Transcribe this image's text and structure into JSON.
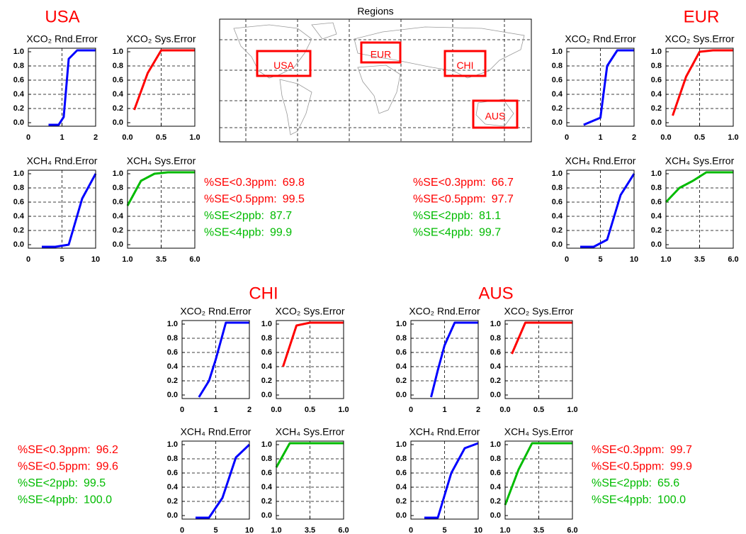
{
  "map": {
    "title": "Regions",
    "boxes": [
      {
        "label": "USA"
      },
      {
        "label": "EUR"
      },
      {
        "label": "CHI"
      },
      {
        "label": "AUS"
      }
    ]
  },
  "regions": [
    {
      "name": "USA",
      "stats": [
        {
          "label": "%SE<0.3ppm:",
          "value": "69.8",
          "color": "#ff0000"
        },
        {
          "label": "%SE<0.5ppm:",
          "value": "99.5",
          "color": "#ff0000"
        },
        {
          "label": "%SE<2ppb:",
          "value": "87.7",
          "color": "#00bb00"
        },
        {
          "label": "%SE<4ppb:",
          "value": "99.9",
          "color": "#00bb00"
        }
      ]
    },
    {
      "name": "EUR",
      "stats": [
        {
          "label": "%SE<0.3ppm:",
          "value": "66.7",
          "color": "#ff0000"
        },
        {
          "label": "%SE<0.5ppm:",
          "value": "97.7",
          "color": "#ff0000"
        },
        {
          "label": "%SE<2ppb:",
          "value": "81.1",
          "color": "#00bb00"
        },
        {
          "label": "%SE<4ppb:",
          "value": "99.7",
          "color": "#00bb00"
        }
      ]
    },
    {
      "name": "CHI",
      "stats": [
        {
          "label": "%SE<0.3ppm:",
          "value": "96.2",
          "color": "#ff0000"
        },
        {
          "label": "%SE<0.5ppm:",
          "value": "99.6",
          "color": "#ff0000"
        },
        {
          "label": "%SE<2ppb:",
          "value": "99.5",
          "color": "#00bb00"
        },
        {
          "label": "%SE<4ppb:",
          "value": "100.0",
          "color": "#00bb00"
        }
      ]
    },
    {
      "name": "AUS",
      "stats": [
        {
          "label": "%SE<0.3ppm:",
          "value": "99.7",
          "color": "#ff0000"
        },
        {
          "label": "%SE<0.5ppm:",
          "value": "99.9",
          "color": "#ff0000"
        },
        {
          "label": "%SE<2ppb:",
          "value": "65.6",
          "color": "#00bb00"
        },
        {
          "label": "%SE<4ppb:",
          "value": "100.0",
          "color": "#00bb00"
        }
      ]
    }
  ],
  "chart_data": [
    {
      "type": "line",
      "title": "XCO₂ Rnd.Error",
      "x": [
        0.6,
        0.9,
        1.05,
        1.2,
        1.45,
        2.0
      ],
      "series": [
        {
          "color": "#0000ff",
          "values": [
            -0.03,
            -0.03,
            0.08,
            0.9,
            1.02,
            1.02
          ]
        }
      ],
      "xlim": [
        0,
        2
      ],
      "ylim": [
        -0.05,
        1.05
      ],
      "xticks": [
        0,
        1,
        2
      ],
      "yticks": [
        {
          "value": 0,
          "label": "0.0"
        },
        0.2,
        0.4,
        0.6,
        0.8,
        {
          "value": 1,
          "label": "1.0"
        }
      ],
      "grid": true
    },
    {
      "type": "line",
      "title": "XCO₂ Sys.Error",
      "x": [
        0.1,
        0.3,
        0.5,
        1.0
      ],
      "series": [
        {
          "color": "#ff0000",
          "values": [
            0.18,
            0.7,
            1.02,
            1.02
          ]
        }
      ],
      "xlim": [
        0,
        1
      ],
      "ylim": [
        -0.05,
        1.05
      ],
      "xticks": [
        {
          "value": 0,
          "label": "0.0"
        },
        0.5,
        {
          "value": 1,
          "label": "1.0"
        }
      ],
      "yticks": [
        {
          "value": 0,
          "label": "0.0"
        },
        0.2,
        0.4,
        0.6,
        0.8,
        {
          "value": 1,
          "label": "1.0"
        }
      ],
      "grid": true
    },
    {
      "type": "line",
      "title": "XCH₄ Rnd.Error",
      "x": [
        2,
        4,
        6,
        8,
        10
      ],
      "series": [
        {
          "color": "#0000ff",
          "values": [
            -0.03,
            -0.03,
            0.0,
            0.65,
            1.0
          ]
        }
      ],
      "xlim": [
        0,
        10
      ],
      "ylim": [
        -0.05,
        1.05
      ],
      "xticks": [
        0,
        5,
        10
      ],
      "yticks": [
        {
          "value": 0,
          "label": "0.0"
        },
        0.2,
        0.4,
        0.6,
        0.8,
        {
          "value": 1,
          "label": "1.0"
        }
      ],
      "grid": true
    },
    {
      "type": "line",
      "title": "XCH₄ Sys.Error",
      "x": [
        1,
        2,
        3,
        4,
        6
      ],
      "series": [
        {
          "color": "#00bb00",
          "values": [
            0.55,
            0.9,
            1.0,
            1.02,
            1.02
          ]
        }
      ],
      "xlim": [
        1,
        6
      ],
      "ylim": [
        -0.05,
        1.05
      ],
      "xticks": [
        {
          "value": 1,
          "label": "1.0"
        },
        3.5,
        {
          "value": 6,
          "label": "6.0"
        }
      ],
      "yticks": [
        {
          "value": 0,
          "label": "0.0"
        },
        0.2,
        0.4,
        0.6,
        0.8,
        {
          "value": 1,
          "label": "1.0"
        }
      ],
      "grid": true
    },
    {
      "type": "line",
      "title": "XCO₂ Rnd.Error",
      "x": [
        0.5,
        1.0,
        1.2,
        1.5,
        2.0
      ],
      "series": [
        {
          "color": "#0000ff",
          "values": [
            -0.03,
            0.07,
            0.8,
            1.02,
            1.02
          ]
        }
      ],
      "xlim": [
        0,
        2
      ],
      "ylim": [
        -0.05,
        1.05
      ],
      "xticks": [
        0,
        1,
        2
      ],
      "yticks": [
        {
          "value": 0,
          "label": "0.0"
        },
        0.2,
        0.4,
        0.6,
        0.8,
        {
          "value": 1,
          "label": "1.0"
        }
      ],
      "grid": true
    },
    {
      "type": "line",
      "title": "XCO₂ Sys.Error",
      "x": [
        0.1,
        0.3,
        0.5,
        0.7,
        1.0
      ],
      "series": [
        {
          "color": "#ff0000",
          "values": [
            0.1,
            0.65,
            1.0,
            1.02,
            1.02
          ]
        }
      ],
      "xlim": [
        0,
        1
      ],
      "ylim": [
        -0.05,
        1.05
      ],
      "xticks": [
        {
          "value": 0,
          "label": "0.0"
        },
        0.5,
        {
          "value": 1,
          "label": "1.0"
        }
      ],
      "yticks": [
        {
          "value": 0,
          "label": "0.0"
        },
        0.2,
        0.4,
        0.6,
        0.8,
        {
          "value": 1,
          "label": "1.0"
        }
      ],
      "grid": true
    },
    {
      "type": "line",
      "title": "XCH₄ Rnd.Error",
      "x": [
        2,
        4,
        6,
        8,
        10
      ],
      "series": [
        {
          "color": "#0000ff",
          "values": [
            -0.03,
            -0.03,
            0.07,
            0.7,
            1.0
          ]
        }
      ],
      "xlim": [
        0,
        10
      ],
      "ylim": [
        -0.05,
        1.05
      ],
      "xticks": [
        0,
        5,
        10
      ],
      "yticks": [
        {
          "value": 0,
          "label": "0.0"
        },
        0.2,
        0.4,
        0.6,
        0.8,
        {
          "value": 1,
          "label": "1.0"
        }
      ],
      "grid": true
    },
    {
      "type": "line",
      "title": "XCH₄ Sys.Error",
      "x": [
        1,
        2,
        3,
        4,
        6
      ],
      "series": [
        {
          "color": "#00bb00",
          "values": [
            0.6,
            0.8,
            0.9,
            1.02,
            1.02
          ]
        }
      ],
      "xlim": [
        1,
        6
      ],
      "ylim": [
        -0.05,
        1.05
      ],
      "xticks": [
        {
          "value": 1,
          "label": "1.0"
        },
        3.5,
        {
          "value": 6,
          "label": "6.0"
        }
      ],
      "yticks": [
        {
          "value": 0,
          "label": "0.0"
        },
        0.2,
        0.4,
        0.6,
        0.8,
        {
          "value": 1,
          "label": "1.0"
        }
      ],
      "grid": true
    },
    {
      "type": "line",
      "title": "XCO₂ Rnd.Error",
      "x": [
        0.5,
        0.8,
        1.0,
        1.3,
        2.0
      ],
      "series": [
        {
          "color": "#0000ff",
          "values": [
            -0.03,
            0.2,
            0.5,
            1.02,
            1.02
          ]
        }
      ],
      "xlim": [
        0,
        2
      ],
      "ylim": [
        -0.05,
        1.05
      ],
      "xticks": [
        0,
        1,
        2
      ],
      "yticks": [
        {
          "value": 0,
          "label": "0.0"
        },
        0.2,
        0.4,
        0.6,
        0.8,
        {
          "value": 1,
          "label": "1.0"
        }
      ],
      "grid": true
    },
    {
      "type": "line",
      "title": "XCO₂ Sys.Error",
      "x": [
        0.1,
        0.3,
        0.5,
        1.0
      ],
      "series": [
        {
          "color": "#ff0000",
          "values": [
            0.4,
            0.98,
            1.02,
            1.02
          ]
        }
      ],
      "xlim": [
        0,
        1
      ],
      "ylim": [
        -0.05,
        1.05
      ],
      "xticks": [
        {
          "value": 0,
          "label": "0.0"
        },
        0.5,
        {
          "value": 1,
          "label": "1.0"
        }
      ],
      "yticks": [
        {
          "value": 0,
          "label": "0.0"
        },
        0.2,
        0.4,
        0.6,
        0.8,
        {
          "value": 1,
          "label": "1.0"
        }
      ],
      "grid": true
    },
    {
      "type": "line",
      "title": "XCH₄ Rnd.Error",
      "x": [
        2,
        4,
        6,
        8,
        10
      ],
      "series": [
        {
          "color": "#0000ff",
          "values": [
            -0.03,
            -0.03,
            0.25,
            0.82,
            1.0
          ]
        }
      ],
      "xlim": [
        0,
        10
      ],
      "ylim": [
        -0.05,
        1.05
      ],
      "xticks": [
        0,
        5,
        10
      ],
      "yticks": [
        {
          "value": 0,
          "label": "0.0"
        },
        0.2,
        0.4,
        0.6,
        0.8,
        {
          "value": 1,
          "label": "1.0"
        }
      ],
      "grid": true
    },
    {
      "type": "line",
      "title": "XCH₄ Sys.Error",
      "x": [
        1,
        2,
        6
      ],
      "series": [
        {
          "color": "#00bb00",
          "values": [
            0.68,
            1.02,
            1.02
          ]
        }
      ],
      "xlim": [
        1,
        6
      ],
      "ylim": [
        -0.05,
        1.05
      ],
      "xticks": [
        {
          "value": 1,
          "label": "1.0"
        },
        3.5,
        {
          "value": 6,
          "label": "6.0"
        }
      ],
      "yticks": [
        {
          "value": 0,
          "label": "0.0"
        },
        0.2,
        0.4,
        0.6,
        0.8,
        {
          "value": 1,
          "label": "1.0"
        }
      ],
      "grid": true
    },
    {
      "type": "line",
      "title": "XCO₂ Rnd.Error",
      "x": [
        0.6,
        0.8,
        1.0,
        1.3,
        2.0
      ],
      "series": [
        {
          "color": "#0000ff",
          "values": [
            -0.03,
            0.35,
            0.7,
            1.02,
            1.02
          ]
        }
      ],
      "xlim": [
        0,
        2
      ],
      "ylim": [
        -0.05,
        1.05
      ],
      "xticks": [
        0,
        1,
        2
      ],
      "yticks": [
        {
          "value": 0,
          "label": "0.0"
        },
        0.2,
        0.4,
        0.6,
        0.8,
        {
          "value": 1,
          "label": "1.0"
        }
      ],
      "grid": true
    },
    {
      "type": "line",
      "title": "XCO₂ Sys.Error",
      "x": [
        0.1,
        0.3,
        1.0
      ],
      "series": [
        {
          "color": "#ff0000",
          "values": [
            0.58,
            1.02,
            1.02
          ]
        }
      ],
      "xlim": [
        0,
        1
      ],
      "ylim": [
        -0.05,
        1.05
      ],
      "xticks": [
        {
          "value": 0,
          "label": "0.0"
        },
        0.5,
        {
          "value": 1,
          "label": "1.0"
        }
      ],
      "yticks": [
        {
          "value": 0,
          "label": "0.0"
        },
        0.2,
        0.4,
        0.6,
        0.8,
        {
          "value": 1,
          "label": "1.0"
        }
      ],
      "grid": true
    },
    {
      "type": "line",
      "title": "XCH₄ Rnd.Error",
      "x": [
        2,
        4,
        6,
        8,
        10
      ],
      "series": [
        {
          "color": "#0000ff",
          "values": [
            -0.03,
            -0.03,
            0.6,
            0.95,
            1.02
          ]
        }
      ],
      "xlim": [
        0,
        10
      ],
      "ylim": [
        -0.05,
        1.05
      ],
      "xticks": [
        0,
        5,
        10
      ],
      "yticks": [
        {
          "value": 0,
          "label": "0.0"
        },
        0.2,
        0.4,
        0.6,
        0.8,
        {
          "value": 1,
          "label": "1.0"
        }
      ],
      "grid": true
    },
    {
      "type": "line",
      "title": "XCH₄ Sys.Error",
      "x": [
        1,
        2,
        3,
        6
      ],
      "series": [
        {
          "color": "#00bb00",
          "values": [
            0.15,
            0.65,
            1.02,
            1.02
          ]
        }
      ],
      "xlim": [
        1,
        6
      ],
      "ylim": [
        -0.05,
        1.05
      ],
      "xticks": [
        {
          "value": 1,
          "label": "1.0"
        },
        3.5,
        {
          "value": 6,
          "label": "6.0"
        }
      ],
      "yticks": [
        {
          "value": 0,
          "label": "0.0"
        },
        0.2,
        0.4,
        0.6,
        0.8,
        {
          "value": 1,
          "label": "1.0"
        }
      ],
      "grid": true
    }
  ]
}
